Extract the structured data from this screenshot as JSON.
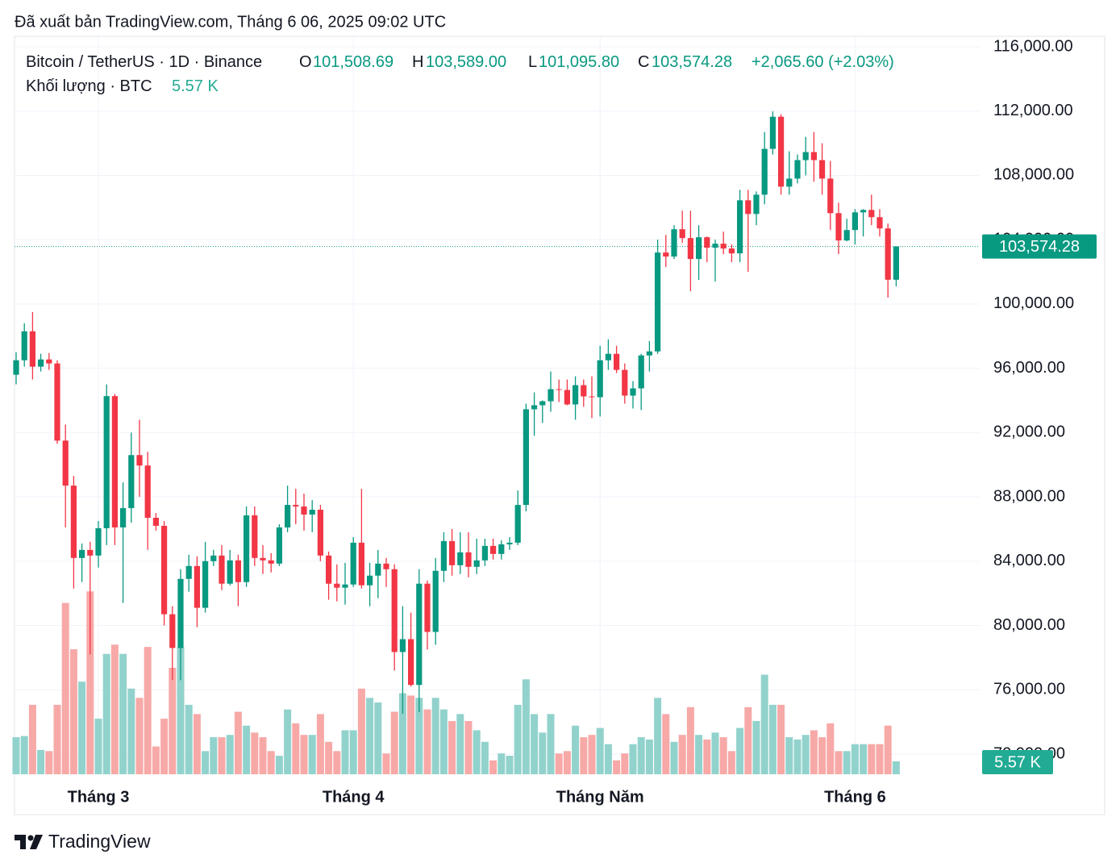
{
  "header": {
    "published": "Đã xuất bản TradingView.com, Tháng 6 06, 2025 09:02 UTC"
  },
  "footer": {
    "brand": "TradingView"
  },
  "chart_data": {
    "type": "candlestick",
    "legend": {
      "symbol": "Bitcoin / TetherUS · 1D · Binance",
      "o_label": "O",
      "o": "101,508.69",
      "h_label": "H",
      "h": "103,589.00",
      "l_label": "L",
      "l": "101,095.80",
      "c_label": "C",
      "c": "103,574.28",
      "change": "+2,065.60 (+2.03%)"
    },
    "close_label": "103,574.28",
    "up_color": "#089981",
    "down_color": "#f23645",
    "categories": [
      null,
      null,
      null,
      null,
      null,
      null,
      null,
      null,
      null,
      null,
      "Tháng 3",
      null,
      null,
      null,
      null,
      null,
      null,
      null,
      null,
      null,
      null,
      null,
      null,
      null,
      null,
      null,
      null,
      null,
      null,
      null,
      null,
      null,
      null,
      null,
      null,
      null,
      null,
      null,
      null,
      null,
      null,
      "Tháng 4",
      null,
      null,
      null,
      null,
      null,
      null,
      null,
      null,
      null,
      null,
      null,
      null,
      null,
      null,
      null,
      null,
      null,
      null,
      null,
      null,
      null,
      null,
      null,
      null,
      null,
      null,
      null,
      null,
      null,
      "Tháng Năm",
      null,
      null,
      null,
      null,
      null,
      null,
      null,
      null,
      null,
      null,
      null,
      null,
      null,
      null,
      null,
      null,
      null,
      null,
      null,
      null,
      null,
      null,
      null,
      null,
      null,
      null,
      null,
      null,
      null,
      null,
      "Tháng 6",
      null,
      null,
      null,
      null,
      null
    ],
    "open": [
      95600,
      96500,
      98300,
      96100,
      96550,
      96300,
      91500,
      88700,
      84200,
      84700,
      84350,
      86050,
      94270,
      86100,
      87300,
      90600,
      89950,
      86700,
      86200,
      80700,
      78600,
      82900,
      83700,
      81100,
      84000,
      84350,
      82600,
      84050,
      82700,
      86850,
      84200,
      84050,
      83850,
      86100,
      87500,
      87400,
      86900,
      87200,
      84350,
      82600,
      82350,
      82550,
      85150,
      82500,
      83100,
      83850,
      83500,
      78350,
      79150,
      76300,
      82600,
      79600,
      83400,
      85250,
      83750,
      84550,
      83650,
      84050,
      84950,
      84450,
      85050,
      85150,
      87500,
      93450,
      93700,
      93950,
      94700,
      94650,
      93750,
      94950,
      94250,
      94200,
      96500,
      96900,
      95900,
      94300,
      94750,
      96800,
      97050,
      103200,
      102950,
      104650,
      104100,
      102800,
      104150,
      103500,
      103750,
      103450,
      103150,
      106450,
      105600,
      106800,
      109650,
      111650,
      107300,
      107800,
      108950,
      109450,
      108950,
      107800,
      105650,
      103950,
      104600,
      105700,
      105850,
      105400,
      104700,
      101508.69
    ],
    "high": [
      97000,
      98800,
      99500,
      96900,
      96950,
      96500,
      92500,
      89300,
      85100,
      85200,
      86500,
      95000,
      94400,
      88900,
      92000,
      92800,
      90800,
      87000,
      86500,
      81200,
      83500,
      84400,
      84300,
      85200,
      84700,
      85000,
      84700,
      84400,
      87400,
      87400,
      85000,
      84500,
      86300,
      88700,
      88500,
      88200,
      87800,
      87500,
      84600,
      83800,
      83900,
      85500,
      88500,
      83900,
      84700,
      84200,
      83800,
      81200,
      80800,
      83500,
      82800,
      84200,
      85800,
      86000,
      85800,
      85800,
      85400,
      85400,
      85400,
      85300,
      85500,
      88400,
      93800,
      94500,
      94000,
      95800,
      95300,
      95300,
      95500,
      95300,
      95500,
      97400,
      97800,
      97400,
      96300,
      95200,
      96900,
      97700,
      104000,
      104300,
      104900,
      105800,
      105800,
      104900,
      104200,
      104000,
      104500,
      103700,
      107100,
      107100,
      107000,
      110700,
      111980,
      111800,
      109500,
      109300,
      110400,
      110700,
      110000,
      108900,
      106300,
      105300,
      105900,
      105900,
      106800,
      105900,
      105000,
      103589
    ],
    "low": [
      95000,
      96100,
      95300,
      95800,
      95900,
      91300,
      86100,
      82300,
      82700,
      78200,
      83600,
      85000,
      85000,
      81400,
      86400,
      88000,
      84700,
      85900,
      80000,
      76600,
      76600,
      82100,
      79900,
      80800,
      83700,
      82200,
      82500,
      81200,
      82400,
      83700,
      83200,
      83300,
      83700,
      85800,
      86300,
      85900,
      85800,
      84000,
      81600,
      81500,
      81300,
      82400,
      82300,
      81200,
      81700,
      82400,
      77200,
      74500,
      76200,
      74600,
      78500,
      78800,
      82700,
      83100,
      83200,
      83000,
      83200,
      83700,
      84100,
      84100,
      84700,
      85000,
      87100,
      91800,
      92600,
      93300,
      93900,
      93700,
      92800,
      93600,
      92900,
      93000,
      95900,
      95700,
      93800,
      93500,
      93400,
      95800,
      96900,
      102300,
      102800,
      103800,
      100800,
      101500,
      102600,
      101400,
      103100,
      102600,
      102600,
      102000,
      104900,
      106200,
      109300,
      106800,
      106800,
      107500,
      108000,
      107600,
      106800,
      104600,
      103100,
      103900,
      103700,
      104200,
      104900,
      104200,
      100400,
      101095.8
    ],
    "close": [
      96500,
      98300,
      96100,
      96550,
      96300,
      91500,
      88700,
      84200,
      84700,
      84350,
      86050,
      94270,
      86100,
      87300,
      90600,
      89950,
      86700,
      86200,
      80700,
      78600,
      82900,
      83700,
      81100,
      84000,
      84350,
      82600,
      84050,
      82700,
      86850,
      84200,
      84050,
      83850,
      86100,
      87500,
      87400,
      86900,
      87200,
      84350,
      82600,
      82350,
      82550,
      85150,
      82500,
      83100,
      83850,
      83500,
      78350,
      79150,
      76300,
      82600,
      79600,
      83400,
      85250,
      83750,
      84550,
      83650,
      84050,
      84950,
      84450,
      85050,
      85150,
      87500,
      93450,
      93700,
      93950,
      94700,
      94650,
      93750,
      94950,
      94250,
      94200,
      96500,
      96900,
      95900,
      94300,
      94750,
      96800,
      97050,
      103200,
      102950,
      104650,
      104100,
      102800,
      104150,
      103500,
      103750,
      103450,
      103150,
      106450,
      105600,
      106800,
      109650,
      111650,
      107300,
      107800,
      108950,
      109450,
      108950,
      107800,
      105650,
      103950,
      104600,
      105700,
      105850,
      105400,
      104700,
      101508.69,
      103574.28
    ],
    "volume": {
      "name": "Khối lượng · BTC",
      "label": "5.57 K",
      "axis": "y2",
      "up_color": "#92d2cc",
      "down_color": "#f7a9a7",
      "badge_color": "#22ab94",
      "values": [
        16000,
        16500,
        30000,
        10500,
        10000,
        30000,
        74000,
        54000,
        40000,
        79000,
        24000,
        52000,
        56000,
        52000,
        37000,
        33000,
        55000,
        12000,
        24000,
        46000,
        55000,
        30000,
        26000,
        10000,
        16000,
        16000,
        17000,
        27000,
        21000,
        18000,
        16000,
        10000,
        8000,
        28000,
        22000,
        17000,
        17000,
        26000,
        14000,
        10000,
        19000,
        19000,
        37000,
        33000,
        31000,
        9000,
        27000,
        35000,
        34000,
        33000,
        28000,
        33000,
        28000,
        23000,
        26000,
        23000,
        19000,
        14000,
        6000,
        9000,
        8000,
        30000,
        41000,
        26000,
        18000,
        26000,
        9000,
        10000,
        21000,
        16000,
        17000,
        20000,
        13000,
        6000,
        9000,
        13000,
        16000,
        15000,
        33000,
        26000,
        14000,
        17000,
        29000,
        17000,
        15000,
        18000,
        16000,
        10000,
        20000,
        29000,
        23000,
        43000,
        30000,
        30000,
        16000,
        15000,
        17000,
        19000,
        16000,
        22000,
        10000,
        10000,
        13000,
        13000,
        13000,
        13000,
        21000,
        5570
      ]
    },
    "ylim": [
      72000,
      116000
    ],
    "yticks": [
      {
        "value": 72000,
        "label": "72,000.00"
      },
      {
        "value": 76000,
        "label": "76,000.00"
      },
      {
        "value": 80000,
        "label": "80,000.00"
      },
      {
        "value": 84000,
        "label": "84,000.00"
      },
      {
        "value": 88000,
        "label": "88,000.00"
      },
      {
        "value": 92000,
        "label": "92,000.00"
      },
      {
        "value": 96000,
        "label": "96,000.00"
      },
      {
        "value": 100000,
        "label": "100,000.00"
      },
      {
        "value": 104000,
        "label": "104,000.00"
      },
      {
        "value": 108000,
        "label": "108,000.00"
      },
      {
        "value": 112000,
        "label": "112,000.00"
      },
      {
        "value": 116000,
        "label": "116,000.00"
      }
    ],
    "y2lim": [
      0,
      100000
    ],
    "grid": true
  }
}
